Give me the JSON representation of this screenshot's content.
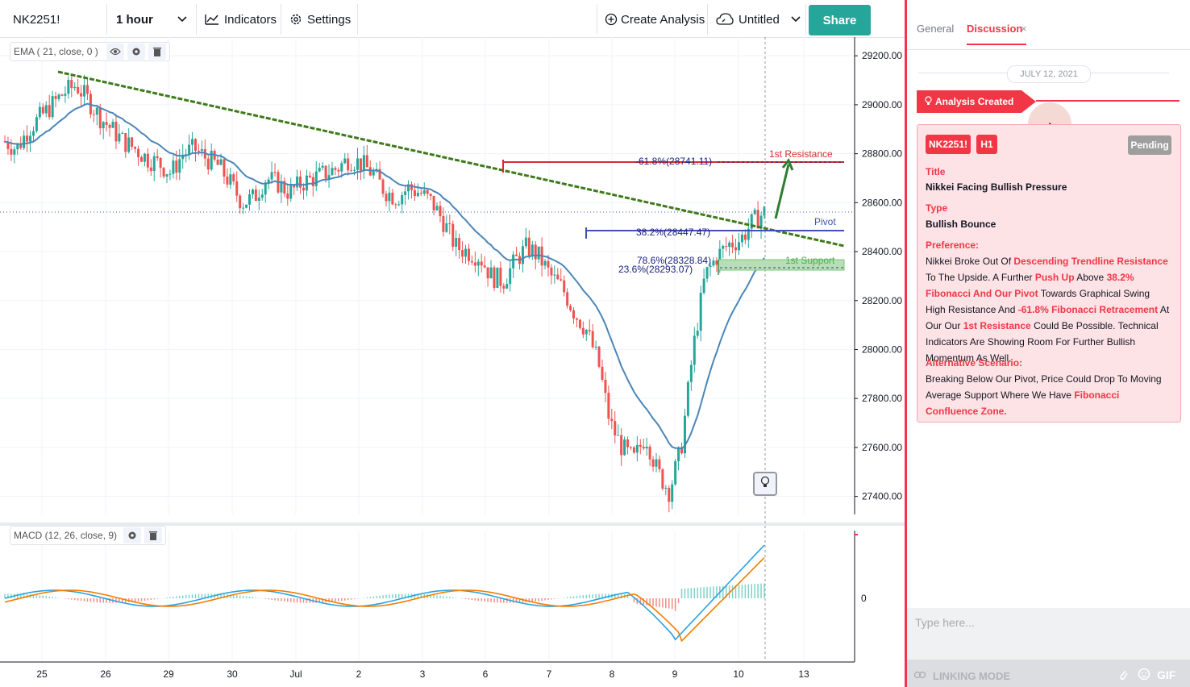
{
  "toolbar": {
    "symbol": "NK2251!",
    "interval": "1 hour",
    "indicators_label": "Indicators",
    "settings_label": "Settings",
    "create_analysis_label": "Create Analysis",
    "layout_name": "Untitled",
    "share_label": "Share"
  },
  "ema_legend": "EMA ( 21, close, 0 )",
  "macd_legend": "MACD (12, 26, close, 9)",
  "price_axis": [
    "29200.00",
    "29000.00",
    "28800.00",
    "28600.00",
    "28400.00",
    "28200.00",
    "28000.00",
    "27800.00",
    "27600.00",
    "27400.00"
  ],
  "macd_axis": [
    "0"
  ],
  "time_axis": [
    "25",
    "26",
    "29",
    "30",
    "Jul",
    "2",
    "3",
    "6",
    "7",
    "8",
    "9",
    "10",
    "13"
  ],
  "annotations": {
    "fib_618": "-61.8%(28741.11)",
    "resistance": "1st Resistance",
    "pivot": "Pivot",
    "fib_382": "38.2%(28447.47)",
    "fib_786": "78.6%(28328.84)",
    "support": "1st Support",
    "fib_236": "23.6%(28293.07)"
  },
  "panel": {
    "tab_general": "General",
    "tab_discussion": "Discussion",
    "tab_close": "×",
    "date": "JULY 12, 2021",
    "event": "Analysis Created",
    "symbol_badge": "NK2251!",
    "tf_badge": "H1",
    "status": "Pending",
    "title_label": "Title",
    "title_value": "Nikkei Facing Bullish Pressure",
    "type_label": "Type",
    "type_value": "Bullish Bounce",
    "pref_label": "Preference:",
    "pref_parts": [
      [
        "Nikkei Broke Out Of ",
        false
      ],
      [
        "Descending Trendline Resistance",
        true
      ],
      [
        " To The Upside. A Further ",
        false
      ],
      [
        "Push Up",
        true
      ],
      [
        " Above ",
        false
      ],
      [
        "38.2% Fibonacci And Our Pivot",
        true
      ],
      [
        " Towards Graphical Swing High Resistance And ",
        false
      ],
      [
        "-61.8% Fibonacci Retracement",
        true
      ],
      [
        " At Our Our ",
        false
      ],
      [
        "1st Resistance",
        true
      ],
      [
        " Could Be Possible. Technical Indicators Are Showing Room For Further Bullish Momentum As Well.",
        false
      ]
    ],
    "alt_label": "Alternative Scenario:",
    "alt_parts": [
      [
        "Breaking Below Our Pivot, Price Could Drop To Moving Average Support Where We Have ",
        false
      ],
      [
        "Fibonacci Confluence Zone.",
        true
      ]
    ],
    "input_placeholder": "Type here...",
    "linking_mode": "LINKING MODE",
    "gif_label": "GIF"
  },
  "colors": {
    "up": "#26a69a",
    "down": "#ef5350",
    "ema": "#4a86b8",
    "trendline": "#3d7a1a",
    "accent": "#f23645",
    "share": "#26a69a"
  },
  "chart_data": {
    "type": "candlestick",
    "ema_period": 21,
    "price_range": [
      27300,
      29250
    ],
    "ohlc_approx_closes": [
      28850,
      28820,
      28900,
      28950,
      29000,
      29050,
      29080,
      29020,
      28950,
      28900,
      28850,
      28820,
      28780,
      28760,
      28720,
      28800,
      28820,
      28780,
      28750,
      28680,
      28600,
      28620,
      28700,
      28680,
      28640,
      28680,
      28700,
      28720,
      28740,
      28780,
      28760,
      28720,
      28650,
      28620,
      28660,
      28640,
      28600,
      28520,
      28420,
      28400,
      28380,
      28300,
      28280,
      28360,
      28420,
      28380,
      28300,
      28250,
      28150,
      28080,
      27950,
      27700,
      27600,
      27550,
      27650,
      27500,
      27420,
      27600,
      28000,
      28300,
      28380,
      28430,
      28450,
      28520,
      28560
    ],
    "macd_range": [
      -1,
      1
    ]
  }
}
